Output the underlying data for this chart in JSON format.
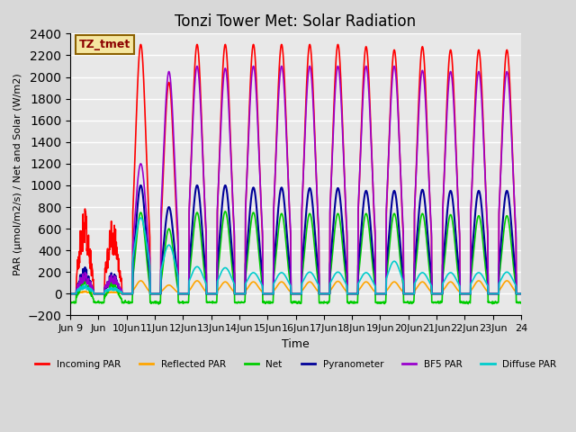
{
  "title": "Tonzi Tower Met: Solar Radiation",
  "ylabel": "PAR (μmol/m2/s) / Net and Solar (W/m2)",
  "xlabel": "Time",
  "ylim": [
    -200,
    2400
  ],
  "xlim": [
    0,
    384
  ],
  "annotation_text": "TZ_tmet",
  "fig_bg_color": "#d8d8d8",
  "plot_bg_color": "#e8e8e8",
  "grid_color": "white",
  "series": {
    "incoming_par": {
      "label": "Incoming PAR",
      "color": "#ff0000"
    },
    "reflected_par": {
      "label": "Reflected PAR",
      "color": "#ffa500"
    },
    "net": {
      "label": "Net",
      "color": "#00cc00"
    },
    "pyranometer": {
      "label": "Pyranometer",
      "color": "#000099"
    },
    "bf5_par": {
      "label": "BF5 PAR",
      "color": "#9900cc"
    },
    "diffuse_par": {
      "label": "Diffuse PAR",
      "color": "#00cccc"
    }
  },
  "n_days": 16,
  "start_day": 9,
  "day_peaks_incoming": [
    800,
    700,
    2300,
    1950,
    2300,
    2300,
    2300,
    2300,
    2300,
    2300,
    2280,
    2250,
    2280,
    2250,
    2250,
    2250
  ],
  "day_peaks_pyranometer": [
    250,
    200,
    1000,
    800,
    1000,
    1000,
    980,
    980,
    975,
    975,
    950,
    950,
    960,
    950,
    950,
    950
  ],
  "day_peaks_bf5": [
    200,
    180,
    1200,
    2050,
    2100,
    2080,
    2100,
    2100,
    2100,
    2100,
    2100,
    2100,
    2060,
    2050,
    2050,
    2050
  ],
  "day_peaks_reflected": [
    25,
    20,
    120,
    80,
    120,
    110,
    110,
    110,
    110,
    115,
    110,
    110,
    110,
    110,
    120,
    120
  ],
  "day_peaks_net": [
    150,
    120,
    750,
    600,
    750,
    760,
    750,
    740,
    740,
    740,
    740,
    740,
    740,
    730,
    720,
    720
  ],
  "day_peaks_diffuse": [
    80,
    60,
    700,
    450,
    250,
    240,
    195,
    195,
    200,
    200,
    195,
    300,
    195,
    195,
    195,
    200
  ],
  "yticks": [
    -200,
    0,
    200,
    400,
    600,
    800,
    1000,
    1200,
    1400,
    1600,
    1800,
    2000,
    2200,
    2400
  ],
  "xtick_labels": [
    "Jun 9",
    "Jun",
    "10Jun",
    "11Jun",
    "12Jun",
    "13Jun",
    "14Jun",
    "15Jun",
    "16Jun",
    "17Jun",
    "18Jun",
    "19Jun",
    "20Jun",
    "21Jun",
    "22Jun",
    "23Jun",
    "24"
  ]
}
